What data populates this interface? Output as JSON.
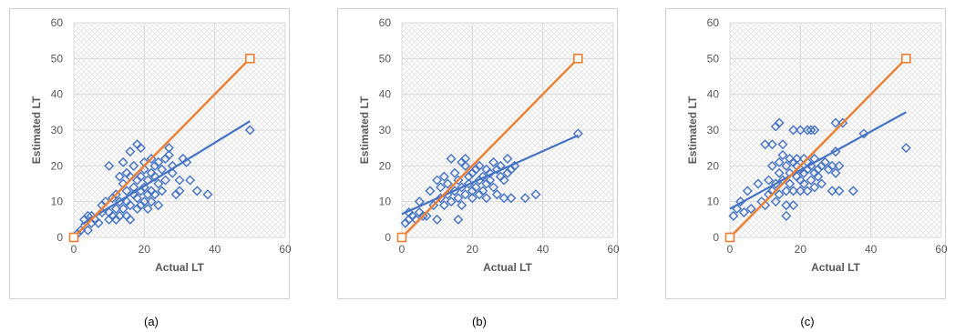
{
  "colors": {
    "scatter": "#4472c4",
    "ideal": "#ed7d31",
    "grid": "#d9d9d9",
    "hatch": "#e3e3e3"
  },
  "chart_data": [
    {
      "type": "scatter",
      "caption": "(a)",
      "xlabel": "Actual LT",
      "ylabel": "Estimated LT",
      "xlim": [
        0,
        60
      ],
      "ylim": [
        0,
        60
      ],
      "xticks": [
        "0",
        "20",
        "40",
        "60"
      ],
      "yticks": [
        "0",
        "10",
        "20",
        "30",
        "40",
        "50",
        "60"
      ],
      "grid": true,
      "series": [
        {
          "kind": "points",
          "color": "#4472c4",
          "marker": "diamond",
          "points": [
            [
              1,
              1
            ],
            [
              2,
              2
            ],
            [
              3,
              5
            ],
            [
              4,
              6
            ],
            [
              4,
              2
            ],
            [
              5,
              4
            ],
            [
              5,
              6
            ],
            [
              6,
              5
            ],
            [
              7,
              4
            ],
            [
              8,
              7
            ],
            [
              8,
              9
            ],
            [
              9,
              10
            ],
            [
              10,
              20
            ],
            [
              10,
              5
            ],
            [
              10,
              7
            ],
            [
              11,
              11
            ],
            [
              11,
              6
            ],
            [
              12,
              8
            ],
            [
              12,
              12
            ],
            [
              12,
              5
            ],
            [
              13,
              17
            ],
            [
              13,
              10
            ],
            [
              13,
              6
            ],
            [
              14,
              21
            ],
            [
              14,
              15
            ],
            [
              14,
              8
            ],
            [
              15,
              13
            ],
            [
              15,
              18
            ],
            [
              15,
              10
            ],
            [
              15,
              6
            ],
            [
              16,
              17
            ],
            [
              16,
              24
            ],
            [
              16,
              5
            ],
            [
              16,
              9
            ],
            [
              17,
              12
            ],
            [
              17,
              20
            ],
            [
              17,
              14
            ],
            [
              18,
              26
            ],
            [
              18,
              8
            ],
            [
              18,
              16
            ],
            [
              18,
              11
            ],
            [
              19,
              25
            ],
            [
              19,
              13
            ],
            [
              19,
              17
            ],
            [
              19,
              9
            ],
            [
              20,
              14
            ],
            [
              20,
              19
            ],
            [
              20,
              21
            ],
            [
              20,
              10
            ],
            [
              21,
              16
            ],
            [
              21,
              12
            ],
            [
              21,
              8
            ],
            [
              22,
              22
            ],
            [
              22,
              18
            ],
            [
              22,
              13
            ],
            [
              22,
              10
            ],
            [
              23,
              17
            ],
            [
              23,
              20
            ],
            [
              23,
              12
            ],
            [
              24,
              15
            ],
            [
              24,
              21
            ],
            [
              24,
              9
            ],
            [
              25,
              19
            ],
            [
              25,
              13
            ],
            [
              26,
              22
            ],
            [
              26,
              16
            ],
            [
              27,
              23
            ],
            [
              27,
              25
            ],
            [
              28,
              18
            ],
            [
              28,
              20
            ],
            [
              29,
              12
            ],
            [
              30,
              16
            ],
            [
              30,
              13
            ],
            [
              31,
              22
            ],
            [
              32,
              21
            ],
            [
              33,
              16
            ],
            [
              35,
              13
            ],
            [
              38,
              12
            ],
            [
              50,
              30
            ]
          ]
        },
        {
          "kind": "trend",
          "color": "#4472c4",
          "points": [
            [
              2,
              3.5
            ],
            [
              50,
              32.5
            ]
          ]
        },
        {
          "kind": "ideal",
          "color": "#ed7d31",
          "marker": "square",
          "points": [
            [
              0,
              0
            ],
            [
              50,
              50
            ]
          ]
        }
      ]
    },
    {
      "type": "scatter",
      "caption": "(b)",
      "xlabel": "Actual LT",
      "ylabel": "Estimated LT",
      "xlim": [
        0,
        60
      ],
      "ylim": [
        0,
        60
      ],
      "xticks": [
        "0",
        "20",
        "40",
        "60"
      ],
      "yticks": [
        "0",
        "10",
        "20",
        "30",
        "40",
        "50",
        "60"
      ],
      "grid": true,
      "series": [
        {
          "kind": "points",
          "color": "#4472c4",
          "marker": "diamond",
          "points": [
            [
              1,
              4
            ],
            [
              2,
              5
            ],
            [
              2,
              7
            ],
            [
              3,
              6
            ],
            [
              4,
              5
            ],
            [
              5,
              10
            ],
            [
              5,
              7
            ],
            [
              6,
              6
            ],
            [
              7,
              6
            ],
            [
              8,
              13
            ],
            [
              9,
              9
            ],
            [
              10,
              5
            ],
            [
              10,
              16
            ],
            [
              11,
              11
            ],
            [
              11,
              14
            ],
            [
              12,
              17
            ],
            [
              12,
              9
            ],
            [
              13,
              15
            ],
            [
              13,
              12
            ],
            [
              14,
              22
            ],
            [
              14,
              10
            ],
            [
              15,
              18
            ],
            [
              15,
              13
            ],
            [
              16,
              5
            ],
            [
              16,
              16
            ],
            [
              16,
              11
            ],
            [
              17,
              21
            ],
            [
              17,
              14
            ],
            [
              17,
              9
            ],
            [
              18,
              20
            ],
            [
              18,
              22
            ],
            [
              18,
              12
            ],
            [
              19,
              17
            ],
            [
              19,
              15
            ],
            [
              20,
              13
            ],
            [
              20,
              18
            ],
            [
              20,
              11
            ],
            [
              21,
              19
            ],
            [
              21,
              14
            ],
            [
              22,
              16
            ],
            [
              22,
              12
            ],
            [
              22,
              20
            ],
            [
              23,
              17
            ],
            [
              23,
              13
            ],
            [
              24,
              15
            ],
            [
              24,
              19
            ],
            [
              24,
              11
            ],
            [
              25,
              18
            ],
            [
              25,
              16
            ],
            [
              26,
              21
            ],
            [
              26,
              14
            ],
            [
              27,
              19
            ],
            [
              27,
              12
            ],
            [
              28,
              17
            ],
            [
              28,
              20
            ],
            [
              29,
              16
            ],
            [
              29,
              11
            ],
            [
              30,
              22
            ],
            [
              30,
              18
            ],
            [
              31,
              19
            ],
            [
              31,
              11
            ],
            [
              32,
              20
            ],
            [
              35,
              11
            ],
            [
              38,
              12
            ],
            [
              50,
              29
            ]
          ]
        },
        {
          "kind": "trend",
          "color": "#4472c4",
          "points": [
            [
              0,
              6.5
            ],
            [
              50,
              28.5
            ]
          ]
        },
        {
          "kind": "ideal",
          "color": "#ed7d31",
          "marker": "square",
          "points": [
            [
              0,
              0
            ],
            [
              50,
              50
            ]
          ]
        }
      ]
    },
    {
      "type": "scatter",
      "caption": "(c)",
      "xlabel": "Actual LT",
      "ylabel": "Estimated LT",
      "xlim": [
        0,
        60
      ],
      "ylim": [
        0,
        60
      ],
      "xticks": [
        "0",
        "20",
        "40",
        "60"
      ],
      "yticks": [
        "0",
        "10",
        "20",
        "30",
        "40",
        "50",
        "60"
      ],
      "grid": true,
      "series": [
        {
          "kind": "points",
          "color": "#4472c4",
          "marker": "diamond",
          "points": [
            [
              1,
              6
            ],
            [
              2,
              8
            ],
            [
              3,
              10
            ],
            [
              4,
              7
            ],
            [
              5,
              13
            ],
            [
              6,
              8
            ],
            [
              8,
              15
            ],
            [
              9,
              10
            ],
            [
              10,
              26
            ],
            [
              10,
              9
            ],
            [
              11,
              12
            ],
            [
              11,
              16
            ],
            [
              12,
              26
            ],
            [
              12,
              13
            ],
            [
              12,
              20
            ],
            [
              13,
              31
            ],
            [
              13,
              15
            ],
            [
              13,
              10
            ],
            [
              14,
              32
            ],
            [
              14,
              18
            ],
            [
              14,
              21
            ],
            [
              14,
              12
            ],
            [
              15,
              26
            ],
            [
              15,
              23
            ],
            [
              15,
              16
            ],
            [
              16,
              20
            ],
            [
              16,
              13
            ],
            [
              16,
              9
            ],
            [
              16,
              6
            ],
            [
              17,
              22
            ],
            [
              17,
              18
            ],
            [
              17,
              15
            ],
            [
              18,
              30
            ],
            [
              18,
              21
            ],
            [
              18,
              13
            ],
            [
              18,
              9
            ],
            [
              19,
              22
            ],
            [
              19,
              17
            ],
            [
              19,
              20
            ],
            [
              20,
              30
            ],
            [
              20,
              16
            ],
            [
              20,
              19
            ],
            [
              20,
              13
            ],
            [
              21,
              22
            ],
            [
              21,
              18
            ],
            [
              21,
              15
            ],
            [
              22,
              30
            ],
            [
              22,
              19
            ],
            [
              22,
              21
            ],
            [
              22,
              13
            ],
            [
              23,
              30
            ],
            [
              23,
              20
            ],
            [
              23,
              16
            ],
            [
              24,
              30
            ],
            [
              24,
              18
            ],
            [
              24,
              22
            ],
            [
              24,
              14
            ],
            [
              25,
              19
            ],
            [
              25,
              17
            ],
            [
              26,
              20
            ],
            [
              26,
              15
            ],
            [
              27,
              21
            ],
            [
              28,
              19
            ],
            [
              29,
              20
            ],
            [
              29,
              13
            ],
            [
              30,
              32
            ],
            [
              30,
              18
            ],
            [
              30,
              24
            ],
            [
              31,
              13
            ],
            [
              31,
              20
            ],
            [
              32,
              32
            ],
            [
              35,
              13
            ],
            [
              38,
              29
            ],
            [
              50,
              25
            ]
          ]
        },
        {
          "kind": "trend",
          "color": "#4472c4",
          "points": [
            [
              0,
              8
            ],
            [
              50,
              35
            ]
          ]
        },
        {
          "kind": "ideal",
          "color": "#ed7d31",
          "marker": "square",
          "points": [
            [
              0,
              0
            ],
            [
              50,
              50
            ]
          ]
        }
      ]
    }
  ]
}
